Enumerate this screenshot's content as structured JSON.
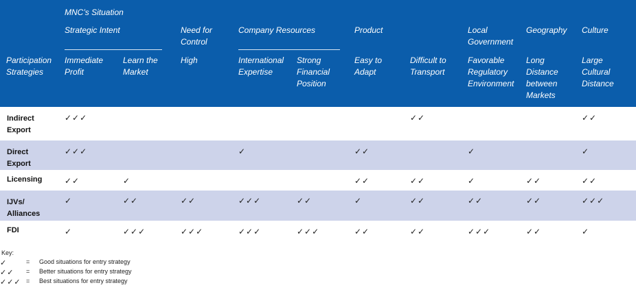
{
  "header": {
    "situation": "MNC’s Situation",
    "participation_line1": "Participation",
    "participation_line2": "Strategies",
    "groups": [
      {
        "lines": [
          "Strategic Intent"
        ]
      },
      {
        "lines": [
          "Need for",
          "Control"
        ]
      },
      {
        "lines": [
          "Company Resources"
        ]
      },
      {
        "lines": [
          "Product"
        ]
      },
      {
        "lines": [
          "Local",
          "Government"
        ]
      },
      {
        "lines": [
          "Geography"
        ]
      },
      {
        "lines": [
          "Culture"
        ]
      }
    ],
    "columns": [
      {
        "lines": [
          "Immediate",
          "Profit"
        ]
      },
      {
        "lines": [
          "Learn the",
          "Market"
        ]
      },
      {
        "lines": [
          "High"
        ]
      },
      {
        "lines": [
          "International",
          "Expertise"
        ]
      },
      {
        "lines": [
          "Strong",
          "Financial",
          "Position"
        ]
      },
      {
        "lines": [
          "Easy to",
          "Adapt"
        ]
      },
      {
        "lines": [
          "Difficult to",
          "Transport"
        ]
      },
      {
        "lines": [
          "Favorable",
          "Regulatory",
          "Environment"
        ]
      },
      {
        "lines": [
          "Long",
          "Distance",
          "between",
          "Markets"
        ]
      },
      {
        "lines": [
          "Large",
          "Cultural",
          "Distance"
        ]
      }
    ]
  },
  "rows": [
    {
      "label": [
        "Indirect",
        "Export"
      ],
      "cells": [
        "✓✓✓",
        "",
        "",
        "",
        "",
        "",
        "✓✓",
        "",
        "",
        "✓✓"
      ]
    },
    {
      "label": [
        "Direct",
        "Export"
      ],
      "cells": [
        "✓✓✓",
        "",
        "",
        "✓",
        "",
        "✓✓",
        "",
        "✓",
        "",
        "✓"
      ]
    },
    {
      "label": [
        "Licensing"
      ],
      "cells": [
        "✓✓",
        "✓",
        "",
        "",
        "",
        "✓✓",
        "✓✓",
        "✓",
        "✓✓",
        "✓✓"
      ]
    },
    {
      "label": [
        "IJVs/",
        "Alliances"
      ],
      "cells": [
        "✓",
        "✓✓",
        "✓✓",
        "✓✓✓",
        "✓✓",
        "✓",
        "✓✓",
        "✓✓",
        "✓✓",
        "✓✓✓"
      ]
    },
    {
      "label": [
        "FDI"
      ],
      "cells": [
        "✓",
        "✓✓✓",
        "✓✓✓",
        "✓✓✓",
        "✓✓✓",
        "✓✓",
        "✓✓",
        "✓✓✓",
        "✓✓",
        "✓"
      ]
    }
  ],
  "key": {
    "title": "Key:",
    "equals": "=",
    "items": [
      {
        "symbol": "✓",
        "desc": "Good situations for entry strategy"
      },
      {
        "symbol": "✓✓",
        "desc": "Better situations for entry strategy"
      },
      {
        "symbol": "✓✓✓",
        "desc": "Best situations for entry strategy"
      }
    ]
  },
  "colors": {
    "header_bg": "#0b5dab",
    "shade_row": "#cdd3ea"
  }
}
